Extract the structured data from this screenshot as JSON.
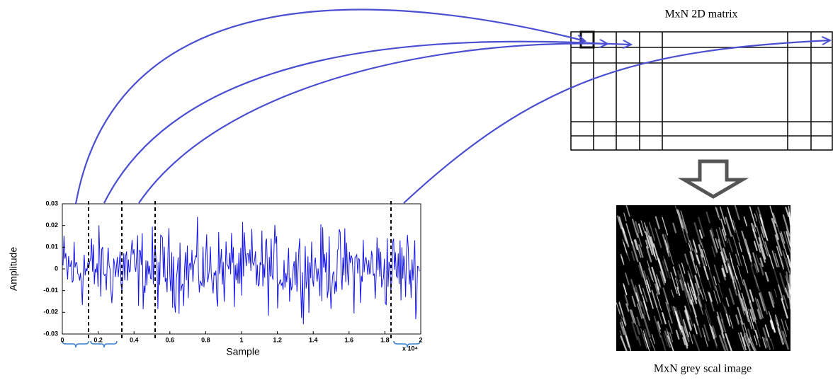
{
  "matrix_title": "MxN  2D matrix",
  "image_caption": "MxN grey scal image",
  "signal_plot": {
    "y_label": "Amplitude",
    "x_label": "Sample",
    "x_multiplier": "x 10⁴",
    "ylim": [
      -0.03,
      0.03
    ],
    "yticks": [
      0.03,
      0.02,
      0.01,
      0,
      -0.01,
      -0.02,
      -0.03
    ],
    "xlim": [
      0,
      2
    ],
    "xticks": [
      0,
      0.2,
      0.4,
      0.6,
      0.8,
      1,
      1.2,
      1.4,
      1.6,
      1.8,
      2
    ]
  }
}
